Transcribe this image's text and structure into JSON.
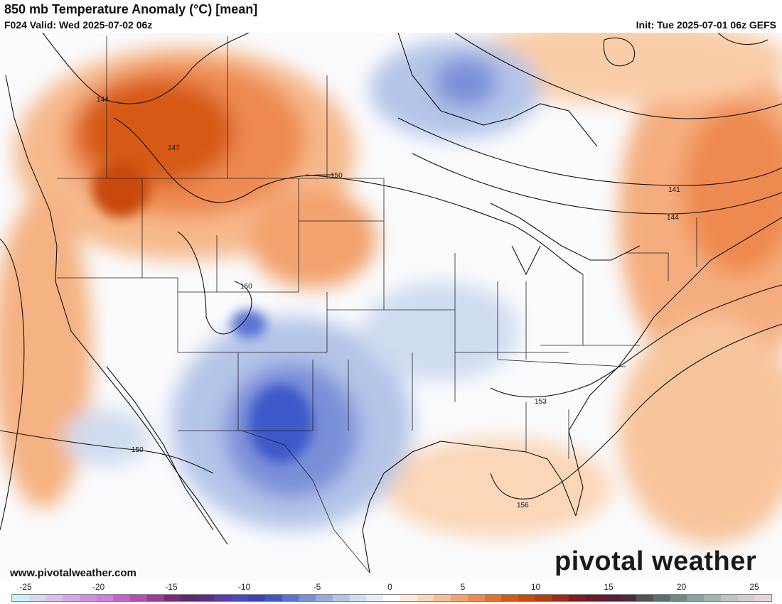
{
  "header": {
    "title": "850 mb Temperature Anomaly (°C) [mean]",
    "valid": "F024 Valid: Wed 2025-07-02 06z",
    "init": "Init: Tue 2025-07-01 06z GEFS"
  },
  "footer": {
    "site": "www.pivotalweather.com",
    "brand": "pivotal weather"
  },
  "legend": {
    "tick_labels": [
      "-25",
      "-20",
      "-15",
      "-10",
      "-5",
      "0",
      "5",
      "10",
      "15",
      "20",
      "25"
    ],
    "colors": [
      "#c8f2f7",
      "#d6d8f3",
      "#d7c2ee",
      "#d6a6ea",
      "#d48de6",
      "#d07ddf",
      "#c55fc9",
      "#b54db5",
      "#9c3a96",
      "#7d2a74",
      "#5c2a6e",
      "#5b2e86",
      "#5a3fa8",
      "#4a4abf",
      "#3a44b8",
      "#3e58c9",
      "#5a73d2",
      "#7a8fd8",
      "#99acdf",
      "#b4c5e8",
      "#d0dcf0",
      "#e7eef8",
      "#ffffff",
      "#fde9d8",
      "#fbd6b7",
      "#f8be92",
      "#f3a36d",
      "#ee8a4f",
      "#e3702e",
      "#d65a14",
      "#c9480b",
      "#b53a0f",
      "#9a2c18",
      "#7f1f1c",
      "#6a1b2c",
      "#5a1f3c",
      "#4d2a3f",
      "#55505a",
      "#5f6d6d",
      "#6f8a84",
      "#86a39e",
      "#a3b3b0",
      "#bfc4c4",
      "#d4cccb",
      "#e6d6d6"
    ],
    "min": -25,
    "max": 25
  },
  "contours": {
    "labels": [
      "144",
      "147",
      "150",
      "150",
      "150",
      "141",
      "144",
      "153",
      "156"
    ]
  },
  "theme": {
    "warm": "#e3702e",
    "cold": "#3e58c9"
  }
}
